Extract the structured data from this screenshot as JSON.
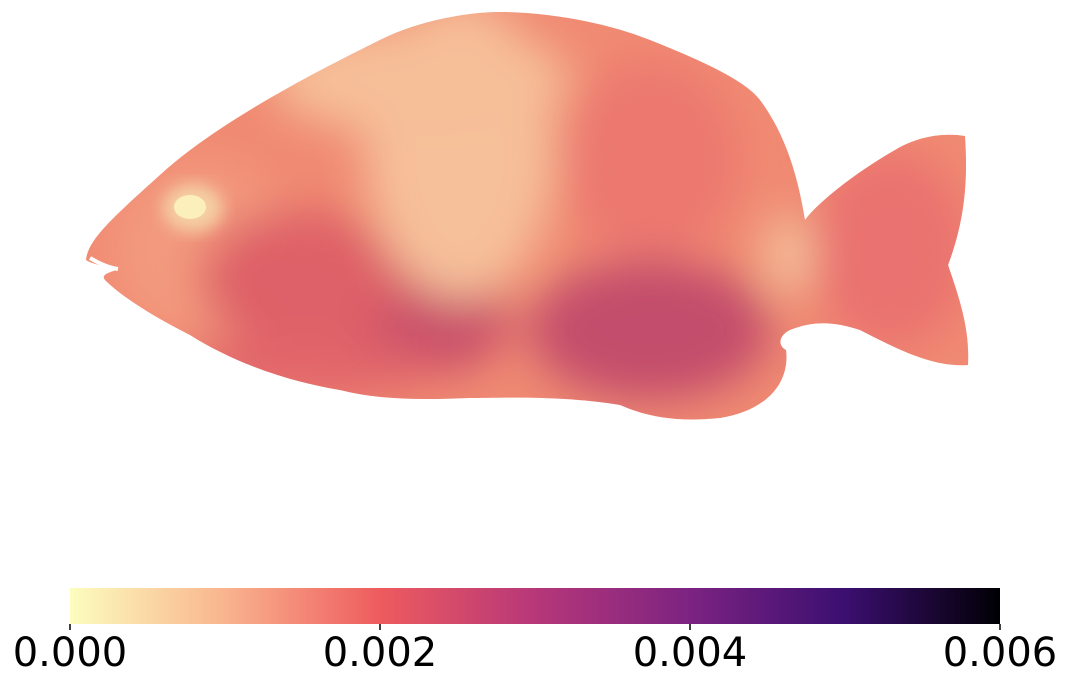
{
  "chart_data": {
    "type": "heatmap",
    "title": "",
    "subject": "fish",
    "colormap": "magma_r",
    "colorbar": {
      "orientation": "horizontal",
      "placement": "bottom",
      "range": [
        0.0,
        0.006
      ],
      "ticks": [
        0.0,
        0.002,
        0.004,
        0.006
      ],
      "tick_labels": [
        "0.000",
        "0.002",
        "0.004",
        "0.006"
      ],
      "stops": [
        {
          "value": 0.0,
          "color": "#fcfdbf"
        },
        {
          "value": 0.001,
          "color": "#f9b48e"
        },
        {
          "value": 0.002,
          "color": "#ee5b5e"
        },
        {
          "value": 0.003,
          "color": "#b73779"
        },
        {
          "value": 0.004,
          "color": "#7c2382"
        },
        {
          "value": 0.005,
          "color": "#3b0f70"
        },
        {
          "value": 0.006,
          "color": "#000004"
        }
      ]
    }
  }
}
